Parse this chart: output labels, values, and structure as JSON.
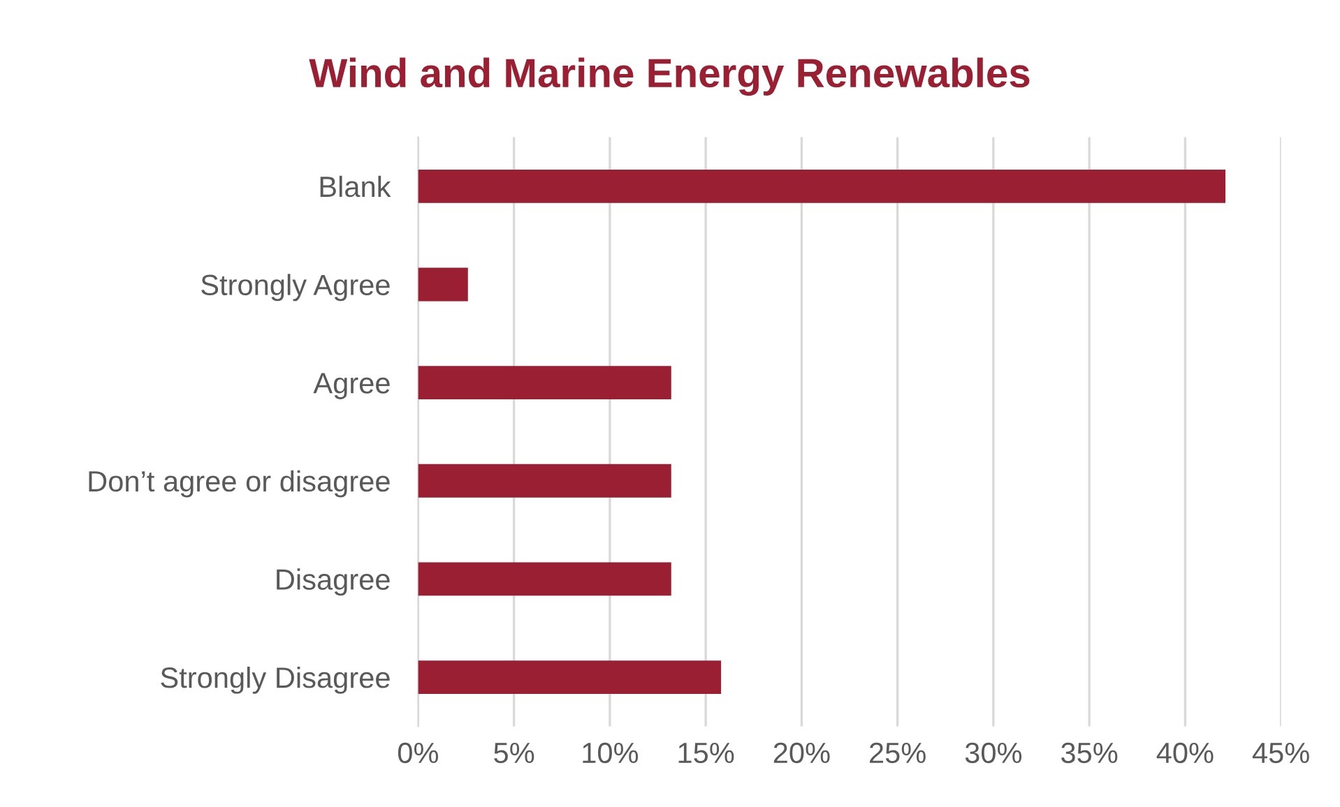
{
  "chart_data": {
    "type": "bar",
    "orientation": "horizontal",
    "title": "Wind and Marine Energy Renewables",
    "categories": [
      "Blank",
      "Strongly Agree",
      "Agree",
      "Don’t agree or disagree",
      "Disagree",
      "Strongly Disagree"
    ],
    "values": [
      42.1,
      2.6,
      13.2,
      13.2,
      13.2,
      15.8
    ],
    "color": "#9b1f33",
    "xlim": [
      0,
      45
    ],
    "xticks": [
      {
        "value": 0,
        "label": "0%"
      },
      {
        "value": 5,
        "label": "5%"
      },
      {
        "value": 10,
        "label": "10%"
      },
      {
        "value": 15,
        "label": "15%"
      },
      {
        "value": 20,
        "label": "20%"
      },
      {
        "value": 25,
        "label": "25%"
      },
      {
        "value": 30,
        "label": "30%"
      },
      {
        "value": 35,
        "label": "35%"
      },
      {
        "value": 40,
        "label": "40%"
      },
      {
        "value": 45,
        "label": "45%"
      }
    ],
    "grid": "x"
  }
}
